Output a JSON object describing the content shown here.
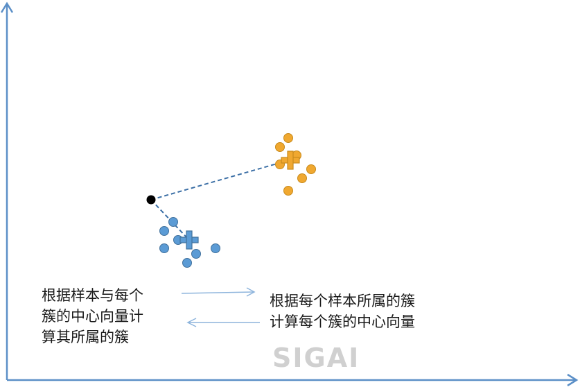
{
  "colors": {
    "axis": "#5b8fc7",
    "cluster_blue": "#5b9bd5",
    "cluster_blue_stroke": "#41719c",
    "cluster_orange": "#f0a830",
    "cluster_orange_stroke": "#c88a1c",
    "sample": "#000000",
    "dashed_link": "#3a6ea5",
    "arrow": "#8db4dc"
  },
  "left_caption": {
    "lines": [
      "根据样本与每个",
      "簇的中心向量计",
      "算其所属的簇"
    ]
  },
  "right_caption": {
    "lines": [
      "根据每个样本所属的簇",
      "计算每个簇的中心向量"
    ]
  },
  "watermark": "SIGAI"
}
